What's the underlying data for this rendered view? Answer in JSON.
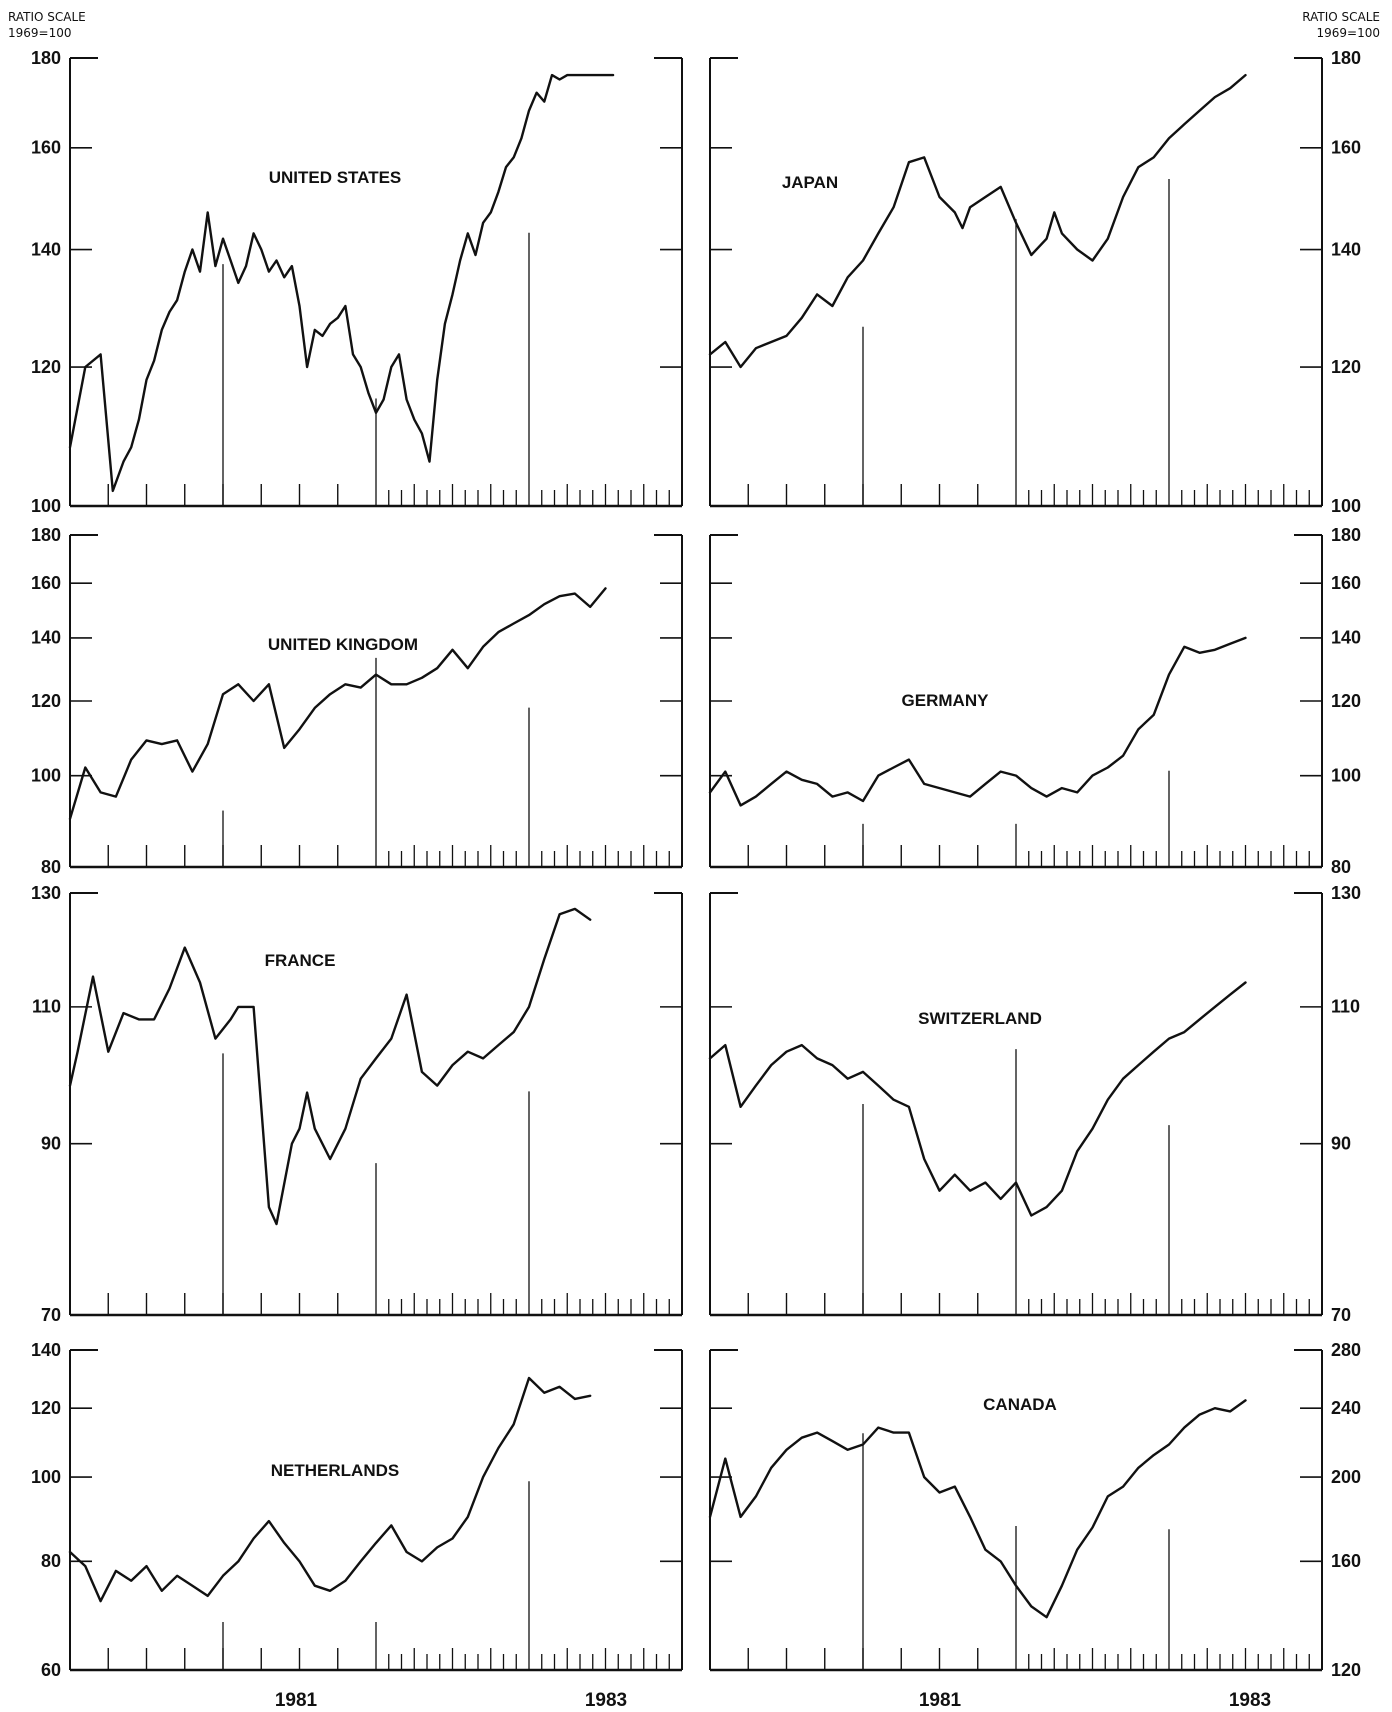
{
  "page": {
    "scale_label": "RATIO SCALE",
    "base_label": "1969=100",
    "x_labels": [
      "1981",
      "1983"
    ]
  },
  "chart_data": [
    {
      "type": "line",
      "title": "UNITED STATES",
      "yscale": "log",
      "ylim": [
        100,
        180
      ],
      "yticks": [
        100,
        120,
        140,
        160,
        180
      ],
      "xlim": [
        1979.5,
        1983.5
      ],
      "x": [
        1979.5,
        1979.6,
        1979.7,
        1979.78,
        1979.85,
        1979.9,
        1979.95,
        1980.0,
        1980.05,
        1980.1,
        1980.15,
        1980.2,
        1980.25,
        1980.3,
        1980.35,
        1980.4,
        1980.45,
        1980.5,
        1980.55,
        1980.6,
        1980.65,
        1980.7,
        1980.75,
        1980.8,
        1980.85,
        1980.9,
        1980.95,
        1981.0,
        1981.05,
        1981.1,
        1981.15,
        1981.2,
        1981.25,
        1981.3,
        1981.35,
        1981.4,
        1981.45,
        1981.5,
        1981.55,
        1981.6,
        1981.65,
        1981.7,
        1981.75,
        1981.8,
        1981.85,
        1981.9,
        1981.95,
        1982.0,
        1982.05,
        1982.1,
        1982.15,
        1982.2,
        1982.25,
        1982.3,
        1982.35,
        1982.4,
        1982.45,
        1982.5,
        1982.55,
        1982.6,
        1982.65,
        1982.7,
        1982.75,
        1982.8,
        1982.85,
        1982.9,
        1982.95,
        1983.0,
        1983.05
      ],
      "values": [
        108,
        120,
        122,
        102,
        106,
        108,
        112,
        118,
        121,
        126,
        129,
        131,
        136,
        140,
        136,
        147,
        137,
        142,
        138,
        134,
        137,
        143,
        140,
        136,
        138,
        135,
        137,
        130,
        120,
        126,
        125,
        127,
        128,
        130,
        122,
        120,
        116,
        113,
        115,
        120,
        122,
        115,
        112,
        110,
        106,
        118,
        127,
        132,
        138,
        143,
        139,
        145,
        147,
        151,
        156,
        158,
        162,
        168,
        172,
        170,
        176,
        175,
        176,
        176,
        176,
        176,
        176,
        176,
        176
      ]
    },
    {
      "type": "line",
      "title": "JAPAN",
      "yscale": "log",
      "ylim": [
        100,
        180
      ],
      "yticks": [
        100,
        120,
        140,
        160,
        180
      ],
      "xlim": [
        1979.5,
        1983.5
      ],
      "x": [
        1979.5,
        1979.6,
        1979.7,
        1979.8,
        1979.9,
        1980.0,
        1980.1,
        1980.2,
        1980.3,
        1980.4,
        1980.5,
        1980.6,
        1980.7,
        1980.8,
        1980.9,
        1981.0,
        1981.1,
        1981.15,
        1981.2,
        1981.3,
        1981.4,
        1981.5,
        1981.6,
        1981.7,
        1981.75,
        1981.8,
        1981.9,
        1982.0,
        1982.1,
        1982.2,
        1982.3,
        1982.4,
        1982.5,
        1982.6,
        1982.7,
        1982.8,
        1982.9,
        1983.0
      ],
      "values": [
        122,
        124,
        120,
        123,
        124,
        125,
        128,
        132,
        130,
        135,
        138,
        143,
        148,
        157,
        158,
        150,
        147,
        144,
        148,
        150,
        152,
        145,
        139,
        142,
        147,
        143,
        140,
        138,
        142,
        150,
        156,
        158,
        162,
        165,
        168,
        171,
        173,
        176
      ]
    },
    {
      "type": "line",
      "title": "UNITED KINGDOM",
      "yscale": "log",
      "ylim": [
        80,
        180
      ],
      "yticks": [
        80,
        100,
        120,
        140,
        160,
        180
      ],
      "xlim": [
        1979.5,
        1983.5
      ],
      "x": [
        1979.5,
        1979.6,
        1979.7,
        1979.8,
        1979.9,
        1980.0,
        1980.1,
        1980.2,
        1980.3,
        1980.4,
        1980.5,
        1980.6,
        1980.7,
        1980.8,
        1980.9,
        1981.0,
        1981.1,
        1981.2,
        1981.3,
        1981.4,
        1981.5,
        1981.6,
        1981.7,
        1981.8,
        1981.9,
        1982.0,
        1982.1,
        1982.2,
        1982.3,
        1982.4,
        1982.5,
        1982.6,
        1982.7,
        1982.8,
        1982.9,
        1983.0
      ],
      "values": [
        90,
        102,
        96,
        95,
        104,
        109,
        108,
        109,
        101,
        108,
        122,
        125,
        120,
        125,
        107,
        112,
        118,
        122,
        125,
        124,
        128,
        125,
        125,
        127,
        130,
        136,
        130,
        137,
        142,
        145,
        148,
        152,
        155,
        156,
        151,
        158
      ]
    },
    {
      "type": "line",
      "title": "GERMANY",
      "yscale": "log",
      "ylim": [
        80,
        180
      ],
      "yticks": [
        80,
        100,
        120,
        140,
        160,
        180
      ],
      "xlim": [
        1979.5,
        1983.5
      ],
      "x": [
        1979.5,
        1979.6,
        1979.7,
        1979.8,
        1979.9,
        1980.0,
        1980.1,
        1980.2,
        1980.3,
        1980.4,
        1980.5,
        1980.6,
        1980.7,
        1980.8,
        1980.9,
        1981.0,
        1981.1,
        1981.2,
        1981.3,
        1981.4,
        1981.5,
        1981.6,
        1981.7,
        1981.8,
        1981.9,
        1982.0,
        1982.1,
        1982.2,
        1982.3,
        1982.4,
        1982.5,
        1982.6,
        1982.7,
        1982.8,
        1982.9,
        1983.0
      ],
      "values": [
        96,
        101,
        93,
        95,
        98,
        101,
        99,
        98,
        95,
        96,
        94,
        100,
        102,
        104,
        98,
        97,
        96,
        95,
        98,
        101,
        100,
        97,
        95,
        97,
        96,
        100,
        102,
        105,
        112,
        116,
        128,
        137,
        135,
        136,
        138,
        140
      ]
    },
    {
      "type": "line",
      "title": "FRANCE",
      "yscale": "log",
      "ylim": [
        70,
        130
      ],
      "yticks": [
        70,
        90,
        110,
        130
      ],
      "xlim": [
        1979.5,
        1983.5
      ],
      "x": [
        1979.5,
        1979.55,
        1979.65,
        1979.75,
        1979.85,
        1979.95,
        1980.05,
        1980.15,
        1980.25,
        1980.35,
        1980.45,
        1980.55,
        1980.6,
        1980.7,
        1980.8,
        1980.85,
        1980.95,
        1981.0,
        1981.05,
        1981.1,
        1981.2,
        1981.3,
        1981.4,
        1981.5,
        1981.6,
        1981.7,
        1981.8,
        1981.9,
        1982.0,
        1982.1,
        1982.2,
        1982.3,
        1982.4,
        1982.5,
        1982.6,
        1982.7,
        1982.8,
        1982.9
      ],
      "values": [
        98,
        103,
        115,
        103,
        109,
        108,
        108,
        113,
        120,
        114,
        105,
        108,
        110,
        110,
        82,
        80,
        90,
        92,
        97,
        92,
        88,
        92,
        99,
        102,
        105,
        112,
        100,
        98,
        101,
        103,
        102,
        104,
        106,
        110,
        118,
        126,
        127,
        125
      ]
    },
    {
      "type": "line",
      "title": "SWITZERLAND",
      "yscale": "log",
      "ylim": [
        70,
        130
      ],
      "yticks": [
        70,
        90,
        110,
        130
      ],
      "xlim": [
        1979.5,
        1983.5
      ],
      "x": [
        1979.5,
        1979.6,
        1979.7,
        1979.8,
        1979.9,
        1980.0,
        1980.1,
        1980.2,
        1980.3,
        1980.4,
        1980.5,
        1980.6,
        1980.7,
        1980.8,
        1980.9,
        1981.0,
        1981.1,
        1981.2,
        1981.3,
        1981.4,
        1981.5,
        1981.6,
        1981.7,
        1981.8,
        1981.9,
        1982.0,
        1982.1,
        1982.2,
        1982.3,
        1982.4,
        1982.5,
        1982.6,
        1982.7,
        1982.8,
        1982.9,
        1983.0
      ],
      "values": [
        102,
        104,
        95,
        98,
        101,
        103,
        104,
        102,
        101,
        99,
        100,
        98,
        96,
        95,
        88,
        84,
        86,
        84,
        85,
        83,
        85,
        81,
        82,
        84,
        89,
        92,
        96,
        99,
        101,
        103,
        105,
        106,
        108,
        110,
        112,
        114
      ]
    },
    {
      "type": "line",
      "title": "NETHERLANDS",
      "yscale": "log",
      "ylim": [
        60,
        140
      ],
      "yticks": [
        60,
        80,
        100,
        120,
        140
      ],
      "xlim": [
        1979.5,
        1983.5
      ],
      "x": [
        1979.5,
        1979.6,
        1979.7,
        1979.8,
        1979.9,
        1980.0,
        1980.1,
        1980.2,
        1980.3,
        1980.4,
        1980.5,
        1980.6,
        1980.7,
        1980.8,
        1980.9,
        1981.0,
        1981.1,
        1981.2,
        1981.3,
        1981.4,
        1981.5,
        1981.6,
        1981.7,
        1981.8,
        1981.9,
        1982.0,
        1982.1,
        1982.2,
        1982.3,
        1982.4,
        1982.5,
        1982.6,
        1982.7,
        1982.8,
        1982.9
      ],
      "values": [
        82,
        79,
        72,
        78,
        76,
        79,
        74,
        77,
        75,
        73,
        77,
        80,
        85,
        89,
        84,
        80,
        75,
        74,
        76,
        80,
        84,
        88,
        82,
        80,
        83,
        85,
        90,
        100,
        108,
        115,
        130,
        125,
        127,
        123,
        124
      ]
    },
    {
      "type": "line",
      "title": "CANADA",
      "yscale": "log",
      "ylim": [
        120,
        280
      ],
      "yticks": [
        120,
        160,
        200,
        240,
        280
      ],
      "xlim": [
        1979.5,
        1983.5
      ],
      "x": [
        1979.5,
        1979.6,
        1979.7,
        1979.8,
        1979.9,
        1980.0,
        1980.1,
        1980.2,
        1980.3,
        1980.4,
        1980.5,
        1980.6,
        1980.7,
        1980.8,
        1980.9,
        1981.0,
        1981.1,
        1981.2,
        1981.3,
        1981.4,
        1981.5,
        1981.6,
        1981.7,
        1981.8,
        1981.9,
        1982.0,
        1982.1,
        1982.2,
        1982.3,
        1982.4,
        1982.5,
        1982.6,
        1982.7,
        1982.8,
        1982.9,
        1983.0
      ],
      "values": [
        180,
        210,
        180,
        190,
        205,
        215,
        222,
        225,
        220,
        215,
        218,
        228,
        225,
        225,
        200,
        192,
        195,
        180,
        165,
        160,
        150,
        142,
        138,
        150,
        165,
        175,
        190,
        195,
        205,
        212,
        218,
        228,
        236,
        240,
        238,
        245
      ]
    }
  ]
}
